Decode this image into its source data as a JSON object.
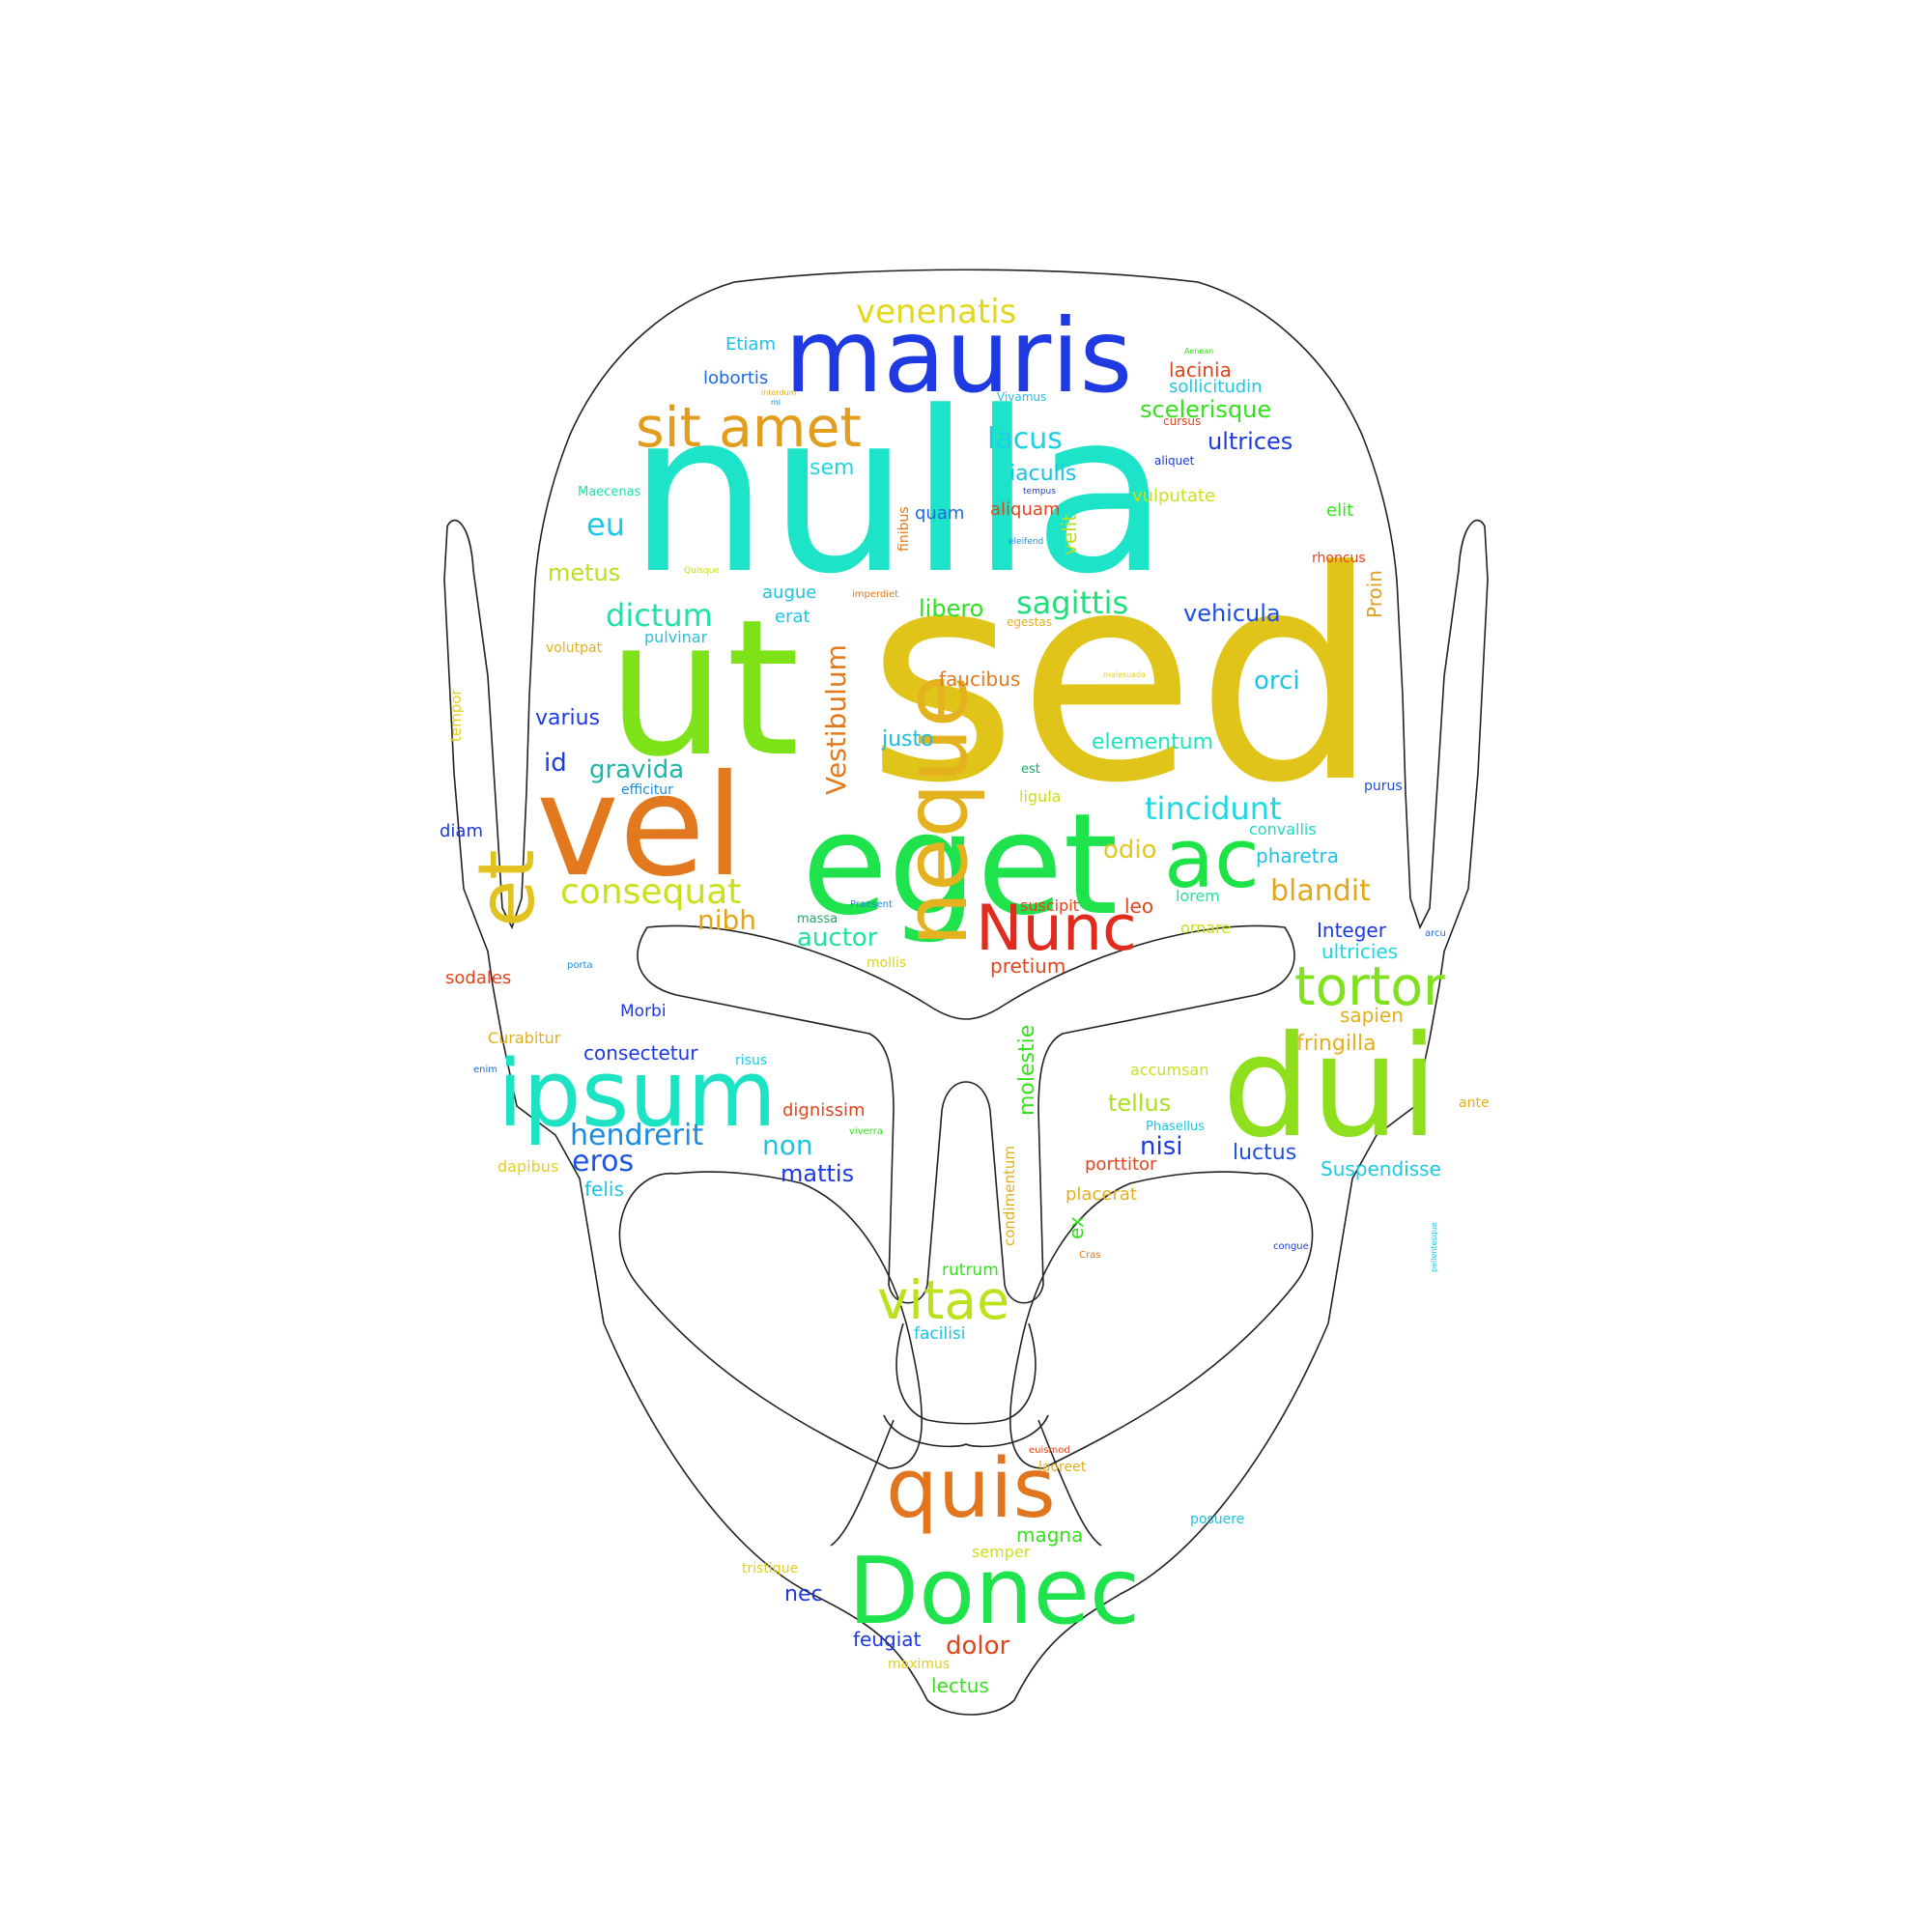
{
  "words": [
    {
      "text": "sed",
      "color": "#e1c419"
    },
    {
      "text": "nulla",
      "color": "#1de3c9"
    },
    {
      "text": "ut",
      "color": "#7ee219"
    },
    {
      "text": "vel",
      "color": "#e2791e"
    },
    {
      "text": "eget",
      "color": "#1ee34d"
    },
    {
      "text": "mauris",
      "color": "#1e3ae0"
    },
    {
      "text": "dui",
      "color": "#8fe01c"
    },
    {
      "text": "Donec",
      "color": "#1ee34c"
    },
    {
      "text": "ipsum",
      "color": "#1ce3c4"
    },
    {
      "text": "neque",
      "color": "#e3b21e"
    },
    {
      "text": "ac",
      "color": "#1de347"
    },
    {
      "text": "et",
      "color": "#e2c21e"
    },
    {
      "text": "quis",
      "color": "#e2761e"
    },
    {
      "text": "Nunc",
      "color": "#e02c1e"
    },
    {
      "text": "sit amet",
      "color": "#e29d1d"
    },
    {
      "text": "tortor",
      "color": "#7fe21d"
    },
    {
      "text": "vitae",
      "color": "#bae31c"
    },
    {
      "text": "consequat",
      "color": "#c8e01d"
    },
    {
      "text": "venenatis",
      "color": "#e1d81d"
    },
    {
      "text": "lacus",
      "color": "#1dcfe3"
    },
    {
      "text": "dictum",
      "color": "#1ee3a4"
    },
    {
      "text": "sagittis",
      "color": "#1ee07a"
    },
    {
      "text": "tincidunt",
      "color": "#1dd8e3"
    },
    {
      "text": "eu",
      "color": "#1dc9e3"
    },
    {
      "text": "hendrerit",
      "color": "#1d8ce0"
    },
    {
      "text": "eros",
      "color": "#1d55e0"
    },
    {
      "text": "blandit",
      "color": "#e2a71d"
    },
    {
      "text": "gravida",
      "color": "#1db6a8"
    },
    {
      "text": "auctor",
      "color": "#1de39e"
    },
    {
      "text": "nibh",
      "color": "#e2a51d"
    },
    {
      "text": "odio",
      "color": "#e3c81d"
    },
    {
      "text": "Vestibulum",
      "color": "#e27a1d"
    },
    {
      "text": "scelerisque",
      "color": "#35e01d"
    },
    {
      "text": "ultrices",
      "color": "#1d3ae0"
    },
    {
      "text": "iaculis",
      "color": "#1dc2e3"
    },
    {
      "text": "sem",
      "color": "#1dd5e3"
    },
    {
      "text": "metus",
      "color": "#b8e01d"
    },
    {
      "text": "libero",
      "color": "#2de31d"
    },
    {
      "text": "vehicula",
      "color": "#1d4fe0"
    },
    {
      "text": "orci",
      "color": "#1dc3e3"
    },
    {
      "text": "elementum",
      "color": "#1de3c0"
    },
    {
      "text": "justo",
      "color": "#1dbfe3"
    },
    {
      "text": "faucibus",
      "color": "#e27b1d"
    },
    {
      "text": "varius",
      "color": "#1d3ae0"
    },
    {
      "text": "id",
      "color": "#1d3ae0"
    },
    {
      "text": "non",
      "color": "#1dc3e3"
    },
    {
      "text": "mattis",
      "color": "#1d3ae0"
    },
    {
      "text": "nisi",
      "color": "#1d3ae0"
    },
    {
      "text": "tellus",
      "color": "#a8e01d"
    },
    {
      "text": "luctus",
      "color": "#1d4fe0"
    },
    {
      "text": "pharetra",
      "color": "#1dc2e3"
    },
    {
      "text": "Integer",
      "color": "#1d3ae0"
    },
    {
      "text": "ultricies",
      "color": "#1dd8e3"
    },
    {
      "text": "fringilla",
      "color": "#e2b01d"
    },
    {
      "text": "sapien",
      "color": "#e2b01d"
    },
    {
      "text": "molestie",
      "color": "#35e01d"
    },
    {
      "text": "pretium",
      "color": "#e0461d"
    },
    {
      "text": "Proin",
      "color": "#e2a01d"
    },
    {
      "text": "velit",
      "color": "#b8e01d"
    },
    {
      "text": "Suspendisse",
      "color": "#1dc8e3"
    },
    {
      "text": "lacinia",
      "color": "#e0461d"
    },
    {
      "text": "sollicitudin",
      "color": "#1dc8e3"
    },
    {
      "text": "lobortis",
      "color": "#1d6ae0"
    },
    {
      "text": "Etiam",
      "color": "#1dc3e3"
    },
    {
      "text": "vulputate",
      "color": "#c8e01d"
    },
    {
      "text": "elit",
      "color": "#35e01d"
    },
    {
      "text": "quam",
      "color": "#1d6ae0"
    },
    {
      "text": "aliquam",
      "color": "#e0461d"
    },
    {
      "text": "augue",
      "color": "#1dc2e3"
    },
    {
      "text": "erat",
      "color": "#1dc8e3"
    },
    {
      "text": "pulvinar",
      "color": "#1dc3e3"
    },
    {
      "text": "volutpat",
      "color": "#e2b01d"
    },
    {
      "text": "tempor",
      "color": "#e2d01d"
    },
    {
      "text": "diam",
      "color": "#1d3ae0"
    },
    {
      "text": "efficitur",
      "color": "#1d8ce0"
    },
    {
      "text": "convallis",
      "color": "#1dd8c3"
    },
    {
      "text": "ligula",
      "color": "#c8e01d"
    },
    {
      "text": "est",
      "color": "#1da860"
    },
    {
      "text": "purus",
      "color": "#1d4fe0"
    },
    {
      "text": "lorem",
      "color": "#1de3a4"
    },
    {
      "text": "leo",
      "color": "#e0461d"
    },
    {
      "text": "suscipit",
      "color": "#e0461d"
    },
    {
      "text": "ornare",
      "color": "#c8e01d"
    },
    {
      "text": "sodales",
      "color": "#e0461d"
    },
    {
      "text": "Morbi",
      "color": "#1d3ae0"
    },
    {
      "text": "Curabitur",
      "color": "#e2b01d"
    },
    {
      "text": "consectetur",
      "color": "#1d3ae0"
    },
    {
      "text": "risus",
      "color": "#1dc8e3"
    },
    {
      "text": "enim",
      "color": "#1d6ae0"
    },
    {
      "text": "dignissim",
      "color": "#e0461d"
    },
    {
      "text": "accumsan",
      "color": "#c8e01d"
    },
    {
      "text": "ante",
      "color": "#e2b01d"
    },
    {
      "text": "Phasellus",
      "color": "#1dc8e3"
    },
    {
      "text": "viverra",
      "color": "#35e01d"
    },
    {
      "text": "dapibus",
      "color": "#e2d01d"
    },
    {
      "text": "felis",
      "color": "#1dc3e3"
    },
    {
      "text": "porttitor",
      "color": "#e0461d"
    },
    {
      "text": "placerat",
      "color": "#e2b01d"
    },
    {
      "text": "ex",
      "color": "#35e01d"
    },
    {
      "text": "condimentum",
      "color": "#e2b01d"
    },
    {
      "text": "rutrum",
      "color": "#35e01d"
    },
    {
      "text": "facilisi",
      "color": "#1dc3e3"
    },
    {
      "text": "congue",
      "color": "#1d3ae0"
    },
    {
      "text": "pellentesque",
      "color": "#1dc3e3"
    },
    {
      "text": "Cras",
      "color": "#e2781d"
    },
    {
      "text": "massa",
      "color": "#1da860"
    },
    {
      "text": "Praesent",
      "color": "#1d8ce0"
    },
    {
      "text": "mollis",
      "color": "#e2d01d"
    },
    {
      "text": "porta",
      "color": "#1d8ce0"
    },
    {
      "text": "arcu",
      "color": "#1d6ae0"
    },
    {
      "text": "magna",
      "color": "#35e01d"
    },
    {
      "text": "semper",
      "color": "#c8e01d"
    },
    {
      "text": "laoreet",
      "color": "#e2b01d"
    },
    {
      "text": "euismod",
      "color": "#e0461d"
    },
    {
      "text": "posuere",
      "color": "#1dc3e3"
    },
    {
      "text": "tristique",
      "color": "#e2d01d"
    },
    {
      "text": "nec",
      "color": "#1d3ae0"
    },
    {
      "text": "feugiat",
      "color": "#1d3ae0"
    },
    {
      "text": "dolor",
      "color": "#e0461d"
    },
    {
      "text": "maximus",
      "color": "#e2d01d"
    },
    {
      "text": "lectus",
      "color": "#35e01d"
    },
    {
      "text": "finibus",
      "color": "#e2781d"
    },
    {
      "text": "imperdiet",
      "color": "#e2781d"
    },
    {
      "text": "egestas",
      "color": "#e2b01d"
    },
    {
      "text": "malesuada",
      "color": "#e2d01d"
    },
    {
      "text": "Maecenas",
      "color": "#1de3a4"
    },
    {
      "text": "Quisque",
      "color": "#c8e01d"
    },
    {
      "text": "interdum",
      "color": "#e2b01d"
    },
    {
      "text": "mi",
      "color": "#1d8ce0"
    },
    {
      "text": "Vivamus",
      "color": "#1dc3e3"
    },
    {
      "text": "cursus",
      "color": "#e0461d"
    },
    {
      "text": "aliquet",
      "color": "#1d3ae0"
    },
    {
      "text": "tempus",
      "color": "#1d3ae0"
    },
    {
      "text": "eleifend",
      "color": "#1d8ce0"
    },
    {
      "text": "rhoncus",
      "color": "#e0461d"
    },
    {
      "text": "Aenean",
      "color": "#35e01d"
    }
  ]
}
